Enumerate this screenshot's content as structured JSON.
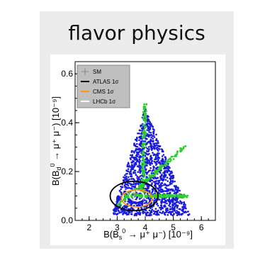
{
  "card": {
    "title": "flavor physics"
  },
  "chart_data": {
    "type": "scatter",
    "title": "",
    "xlabel_base": "B(B",
    "xlabel_sub": "s",
    "xlabel_sup": "0",
    "xlabel_rest": " → μ⁺ μ⁻) [10⁻⁹]",
    "ylabel_base": "B(B",
    "ylabel_sub": "d",
    "ylabel_sup": "0",
    "ylabel_rest": " → μ⁺ μ⁻) [10⁻⁹]",
    "xlim": [
      1.5,
      6.5
    ],
    "ylim": [
      0.0,
      0.65
    ],
    "xticks": [
      "2",
      "3",
      "4",
      "5",
      "6"
    ],
    "yticks": [
      "0.0",
      "0.2",
      "0.4",
      "0.6"
    ],
    "legend": {
      "placement": "top-left",
      "entries": [
        {
          "label": "SM",
          "color": "#888888",
          "marker": "cross"
        },
        {
          "label": "ATLAS 1σ",
          "color": "#000000",
          "marker": "line"
        },
        {
          "label": "CMS 1σ",
          "color": "#ff9a00",
          "marker": "line"
        },
        {
          "label": "LHCb 1σ",
          "color": "#ffffff",
          "marker": "line"
        }
      ]
    },
    "series": [
      {
        "name": "",
        "color": "#1a1adb",
        "region": "triangle",
        "vertices": [
          [
            2.8,
            0.02
          ],
          [
            4.0,
            0.46
          ],
          [
            5.6,
            0.02
          ]
        ]
      },
      {
        "name": "",
        "color": "#2cd02c",
        "bands": [
          {
            "from": [
              3.3,
              0.1
            ],
            "to": [
              5.5,
              0.1
            ]
          },
          {
            "from": [
              3.9,
              0.1
            ],
            "to": [
              4.0,
              0.48
            ]
          },
          {
            "from": [
              3.0,
              0.06
            ],
            "to": [
              5.4,
              0.3
            ]
          }
        ]
      },
      {
        "name": "SM",
        "color": "#888888",
        "x": [
          3.65
        ],
        "y": [
          0.11
        ]
      }
    ],
    "ellipses": [
      {
        "label": "ATLAS 1σ",
        "color": "#000000",
        "cx": 3.6,
        "cy": 0.1,
        "rx": 0.85,
        "ry": 0.06
      },
      {
        "label": "CMS 1σ",
        "color": "#ff9a00",
        "cx": 3.7,
        "cy": 0.09,
        "rx": 0.55,
        "ry": 0.035
      },
      {
        "label": "LHCb 1σ",
        "color": "#ffffff",
        "cx": 3.7,
        "cy": 0.1,
        "rx": 0.25,
        "ry": 0.02
      }
    ]
  }
}
